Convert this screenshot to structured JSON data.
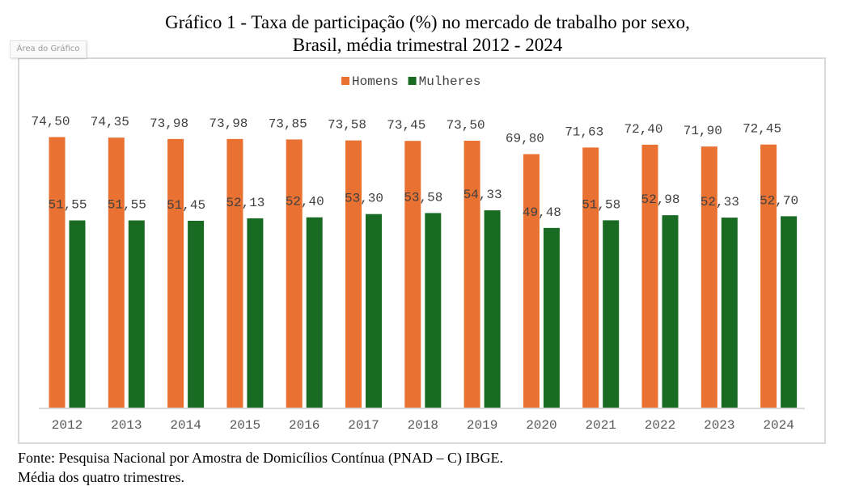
{
  "title_line1": "Gráfico 1 - Taxa de participação (%) no mercado de trabalho por sexo,",
  "title_line2": "Brasil, média trimestral 2012 - 2024",
  "tooltip": "Área do Gráfico",
  "footnote_source": "Fonte: Pesquisa Nacional por Amostra de Domicílios Contínua (PNAD – C) IBGE.",
  "footnote_note": "Média dos quatro trimestres.",
  "chart_data": {
    "type": "bar",
    "title": "Gráfico 1 - Taxa de participação (%) no mercado de trabalho por sexo, Brasil, média trimestral 2012 - 2024",
    "xlabel": "",
    "ylabel": "",
    "ylim": [
      0,
      75
    ],
    "grid": false,
    "legend_position": "top-center",
    "categories": [
      "2012",
      "2013",
      "2014",
      "2015",
      "2016",
      "2017",
      "2018",
      "2019",
      "2020",
      "2021",
      "2022",
      "2023",
      "2024"
    ],
    "series": [
      {
        "name": "Homens",
        "color": "#E97132",
        "values": [
          74.5,
          74.35,
          73.98,
          73.98,
          73.85,
          73.58,
          73.45,
          73.5,
          69.8,
          71.63,
          72.4,
          71.9,
          72.45
        ],
        "labels": [
          "74,50",
          "74,35",
          "73,98",
          "73,98",
          "73,85",
          "73,58",
          "73,45",
          "73,50",
          "69,80",
          "71,63",
          "72,40",
          "71,90",
          "72,45"
        ]
      },
      {
        "name": "Mulheres",
        "color": "#196B24",
        "values": [
          51.55,
          51.55,
          51.45,
          52.13,
          52.4,
          53.3,
          53.58,
          54.33,
          49.48,
          51.58,
          52.98,
          52.33,
          52.7
        ],
        "labels": [
          "51,55",
          "51,55",
          "51,45",
          "52,13",
          "52,40",
          "53,30",
          "53,58",
          "54,33",
          "49,48",
          "51,58",
          "52,98",
          "52,33",
          "52,70"
        ]
      }
    ]
  }
}
